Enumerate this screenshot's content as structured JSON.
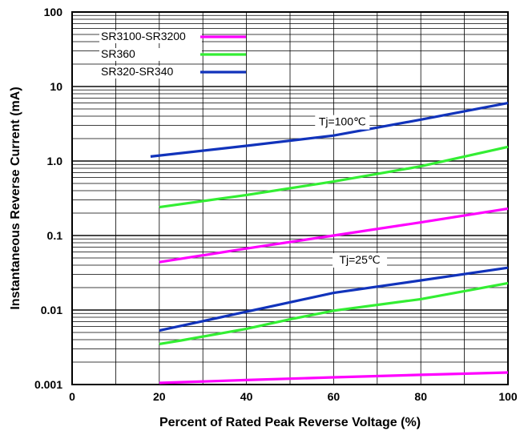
{
  "chart_data": {
    "type": "line",
    "title": "",
    "xlabel": "Percent of Rated Peak Reverse Voltage (%)",
    "ylabel": "Instantaneous Reverse Current (mA)",
    "x_scale": "linear",
    "y_scale": "log",
    "xlim": [
      0,
      100
    ],
    "ylim": [
      0.001,
      100
    ],
    "x_ticks": [
      0,
      20,
      40,
      60,
      80,
      100
    ],
    "x_tick_labels": [
      "0",
      "20",
      "40",
      "60",
      "80",
      "100"
    ],
    "y_ticks": [
      0.001,
      0.01,
      0.1,
      1.0,
      10,
      100
    ],
    "y_tick_labels": [
      "0.001",
      "0.01",
      "0.1",
      "1.0",
      "10",
      "100"
    ],
    "grid": true,
    "legend_position": "top-left",
    "annotations": [
      {
        "text": "Tj=100℃",
        "x": 62,
        "y": 3.0
      },
      {
        "text": "Tj=25℃",
        "x": 66,
        "y": 0.042
      }
    ],
    "series": [
      {
        "name": "SR3100-SR3200",
        "color": "#ff00ff",
        "groups": [
          {
            "x": [
              20,
              40,
              60,
              80,
              100
            ],
            "y": [
              0.044,
              0.067,
              0.1,
              0.15,
              0.23
            ]
          },
          {
            "x": [
              20,
              40,
              60,
              80,
              100
            ],
            "y": [
              0.00105,
              0.00115,
              0.00125,
              0.00135,
              0.00145
            ]
          }
        ]
      },
      {
        "name": "SR360",
        "color": "#33ee33",
        "groups": [
          {
            "x": [
              20,
              40,
              60,
              80,
              100
            ],
            "y": [
              0.24,
              0.35,
              0.53,
              0.85,
              1.55
            ]
          },
          {
            "x": [
              20,
              25,
              40,
              50,
              60,
              80,
              100
            ],
            "y": [
              0.0035,
              0.0039,
              0.0056,
              0.0075,
              0.0098,
              0.014,
              0.023
            ]
          }
        ]
      },
      {
        "name": "SR320-SR340",
        "color": "#1133bb",
        "groups": [
          {
            "x": [
              18,
              40,
              60,
              80,
              100
            ],
            "y": [
              1.15,
              1.6,
              2.2,
              3.6,
              6.0
            ]
          },
          {
            "x": [
              20,
              40,
              60,
              80,
              100
            ],
            "y": [
              0.0053,
              0.0095,
              0.017,
              0.025,
              0.037
            ]
          }
        ]
      }
    ]
  }
}
